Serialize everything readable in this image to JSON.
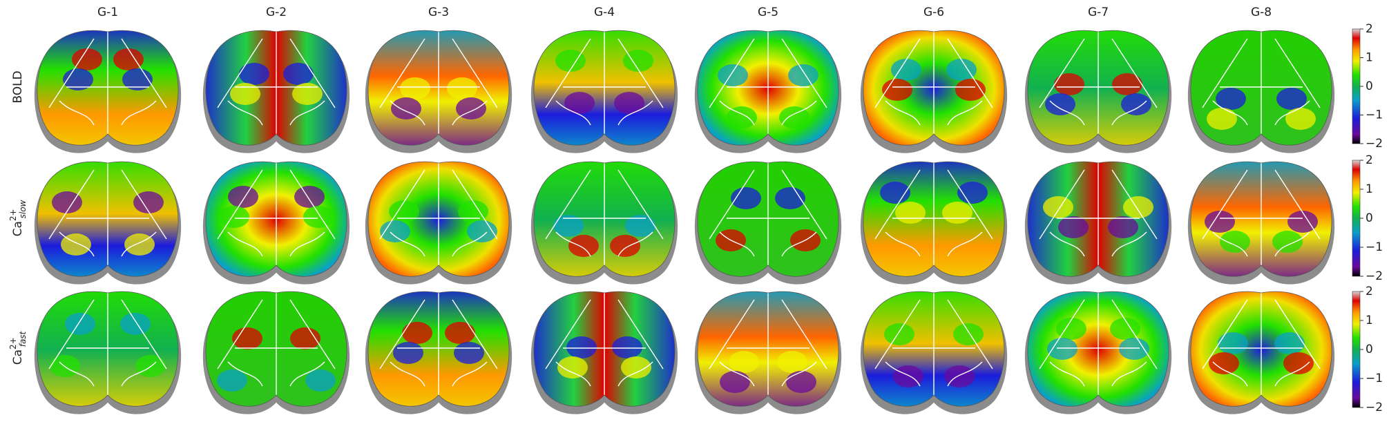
{
  "figure": {
    "columns": [
      "G-1",
      "G-2",
      "G-3",
      "G-4",
      "G-5",
      "G-6",
      "G-7",
      "G-8"
    ],
    "rows": [
      {
        "label": {
          "base": "BOLD"
        }
      },
      {
        "label": {
          "base": "Ca",
          "sup": "2+",
          "sub": "slow"
        }
      },
      {
        "label": {
          "base": "Ca",
          "sup": "2+",
          "sub": "fast"
        }
      }
    ],
    "colorbar": {
      "lim": [
        -2,
        2
      ],
      "ticks": [
        2,
        1,
        0,
        {
          "value": -1,
          "label": "−1"
        },
        {
          "value": -2,
          "label": "−2"
        }
      ]
    }
  }
}
